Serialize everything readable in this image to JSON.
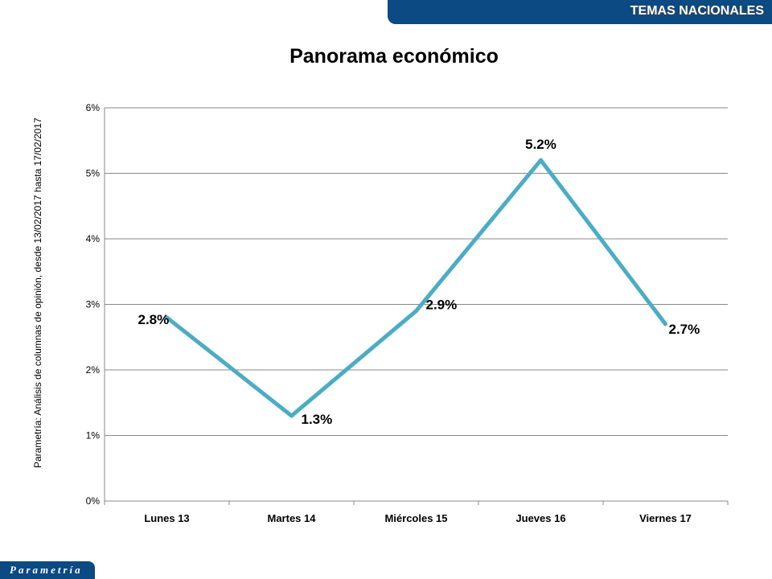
{
  "header": {
    "section": "TEMAS NACIONALES"
  },
  "footer": {
    "brand": "Parametría"
  },
  "source_note": "Parametría: Análisis de columnas de opinión, desde 13/02/2017 hasta 17/02/2017",
  "chart_data": {
    "type": "line",
    "title": "Panorama económico",
    "categories": [
      "Lunes 13",
      "Martes 14",
      "Miércoles 15",
      "Jueves 16",
      "Viernes 17"
    ],
    "values": [
      2.8,
      1.3,
      2.9,
      5.2,
      2.7
    ],
    "labels": [
      "2.8%",
      "1.3%",
      "2.9%",
      "5.2%",
      "2.7%"
    ],
    "yticks": [
      "0%",
      "1%",
      "2%",
      "3%",
      "4%",
      "5%",
      "6%"
    ],
    "ylim": [
      0,
      6
    ],
    "grid": true,
    "color": "#4bacc6"
  }
}
